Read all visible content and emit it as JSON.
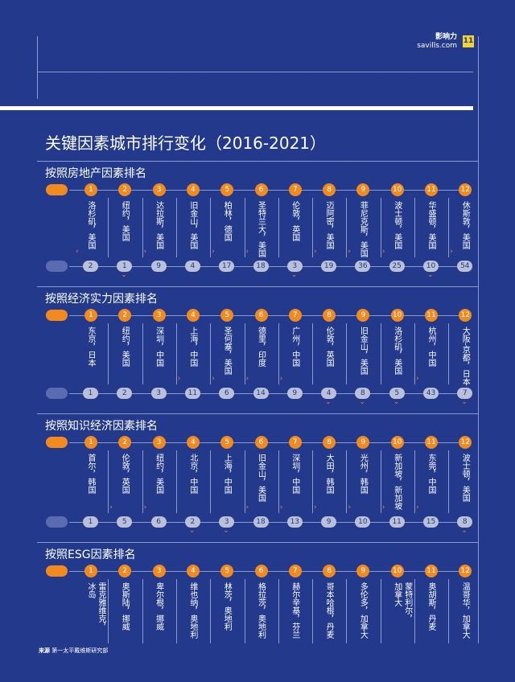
{
  "header": {
    "brand_cn": "影响力",
    "brand_url": "savills.com",
    "page_number": "11"
  },
  "title": "关键因素城市排行变化（2016-2021）",
  "source": {
    "label": "来源",
    "text": "第一太平戴维斯研究部"
  },
  "sections": [
    {
      "title": "按照房地产因素排名",
      "ranks": [
        "1",
        "2",
        "3",
        "4",
        "5",
        "6",
        "7",
        "8",
        "9",
        "10",
        "11",
        "12"
      ],
      "cities": [
        "洛杉矶，美国",
        "纽约，美国",
        "达拉斯，美国",
        "旧金山，美国",
        "柏林，德国",
        "圣特兰大，美国",
        "伦敦，英国",
        "迈阿密，美国",
        "菲尼克斯，美国",
        "波士顿，美国",
        "华盛顿，美国",
        "休斯敦，美国"
      ],
      "prev": [
        "2",
        "1",
        "9",
        "4",
        "17",
        "18",
        "3",
        "19",
        "36",
        "25",
        "10",
        "54"
      ],
      "arrows": [
        "up",
        "down",
        "up",
        "",
        "up",
        "up",
        "down",
        "up",
        "up",
        "up",
        "down",
        "up"
      ]
    },
    {
      "title": "按照经济实力因素排名",
      "ranks": [
        "1",
        "2",
        "3",
        "4",
        "5",
        "6",
        "7",
        "8",
        "9",
        "10",
        "11",
        "12"
      ],
      "cities": [
        "东京，日本",
        "纽约，美国",
        "深圳，中国",
        "上海，中国",
        "圣何塞，美国",
        "德里，印度",
        "广州，中国",
        "伦敦，英国",
        "旧金山，美国",
        "洛杉矶，美国",
        "杭州，中国",
        "大阪-京都，日本"
      ],
      "prev": [
        "1",
        "2",
        "3",
        "11",
        "6",
        "14",
        "9",
        "4",
        "8",
        "5",
        "43",
        "7"
      ],
      "arrows": [
        "",
        "",
        "",
        "up",
        "up",
        "up",
        "up",
        "down",
        "down",
        "down",
        "up",
        "down"
      ]
    },
    {
      "title": "按照知识经济因素排名",
      "ranks": [
        "1",
        "2",
        "3",
        "4",
        "5",
        "6",
        "7",
        "8",
        "9",
        "10",
        "11",
        "12"
      ],
      "cities": [
        "首尔，韩国",
        "伦敦，英国",
        "纽约，美国",
        "北京，中国",
        "上海，中国",
        "旧金山，美国",
        "深圳，中国",
        "大田，韩国",
        "光州，韩国",
        "新加坡，新加坡",
        "东莞，中国",
        "波士顿，美国"
      ],
      "prev": [
        "1",
        "5",
        "6",
        "2",
        "3",
        "18",
        "13",
        "9",
        "10",
        "11",
        "15",
        "8"
      ],
      "arrows": [
        "",
        "up",
        "up",
        "down",
        "down",
        "up",
        "up",
        "up",
        "up",
        "up",
        "up",
        "down"
      ]
    },
    {
      "title": "按照ESG因素排名",
      "ranks": [
        "1",
        "2",
        "3",
        "4",
        "5",
        "6",
        "7",
        "8",
        "9",
        "10",
        "11",
        "12"
      ],
      "cities": [
        "雷克雅维克，\n冰岛",
        "奥斯陆，挪威",
        "卑尔根，挪威",
        "维也纳，奥地利",
        "林茨，奥地利",
        "格拉茨，奥地利",
        "赫尔辛基，芬兰",
        "哥本哈根，丹麦",
        "多伦多，加拿大",
        "蒙特利尔，\n加拿大",
        "奥胡斯，丹麦",
        "温哥华，加拿大"
      ],
      "prev": [],
      "arrows": []
    }
  ]
}
